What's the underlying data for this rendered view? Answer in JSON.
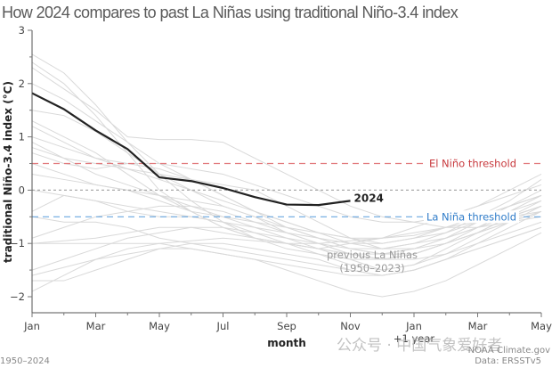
{
  "chart_data": {
    "type": "line",
    "title": "How 2024 compares to past La Niñas using traditional Niño-3.4 index",
    "xlabel": "month",
    "ylabel": "traditional Niño-3.4 index (°C)",
    "x_ticks": [
      "Jan",
      "Mar",
      "May",
      "Jul",
      "Sep",
      "Nov",
      "Jan",
      "Mar",
      "May"
    ],
    "x_tick_sublabel": "+1 year",
    "x_range_months": [
      0,
      16
    ],
    "ylim": [
      -2.3,
      3
    ],
    "y_ticks": [
      3,
      2,
      1,
      0,
      -1,
      -2
    ],
    "y_tick_labels": [
      "3",
      "2",
      "1",
      "0",
      "−1",
      "−2"
    ],
    "grid": false,
    "thresholds": [
      {
        "name": "El Niño threshold",
        "value": 0.5,
        "color": "#e27a7d"
      },
      {
        "name": "La Niña threshold",
        "value": -0.5,
        "color": "#6aa7e0"
      },
      {
        "name": "zero",
        "value": 0,
        "color": "#aaaaaa"
      }
    ],
    "highlight_series": {
      "name": "2024",
      "color": "#222222",
      "x_months": [
        0,
        1,
        2,
        3,
        4,
        5,
        6,
        7,
        8,
        9,
        10
      ],
      "values": [
        1.82,
        1.52,
        1.12,
        0.77,
        0.24,
        0.17,
        0.04,
        -0.13,
        -0.27,
        -0.28,
        -0.2
      ]
    },
    "background_series_label": "previous La Niñas (1950–2023)",
    "background_series_color": "#d9d9d9",
    "background_series": [
      [
        2.55,
        2.2,
        1.6,
        0.9,
        0.3,
        -0.2,
        -0.6,
        -0.9,
        -1.1,
        -1.2,
        -1.3,
        -1.3,
        -1.2,
        -1.0,
        -0.8,
        -0.5,
        -0.3
      ],
      [
        2.4,
        2.0,
        1.4,
        0.7,
        0.0,
        -0.4,
        -0.7,
        -0.9,
        -1.0,
        -1.1,
        -1.0,
        -0.9,
        -0.7,
        -0.5,
        -0.3,
        0.0,
        0.3
      ],
      [
        2.3,
        1.9,
        1.5,
        1.0,
        0.95,
        0.95,
        0.9,
        0.6,
        0.3,
        0.0,
        -0.3,
        -0.5,
        -0.6,
        -0.7,
        -0.7,
        -0.6,
        -0.5
      ],
      [
        2.0,
        1.7,
        1.3,
        0.9,
        0.5,
        0.2,
        -0.1,
        -0.4,
        -0.6,
        -0.8,
        -1.0,
        -1.1,
        -1.1,
        -1.0,
        -0.8,
        -0.6,
        -0.4
      ],
      [
        1.5,
        1.4,
        1.1,
        0.7,
        0.3,
        0.0,
        -0.3,
        -0.5,
        -0.8,
        -1.0,
        -1.2,
        -1.3,
        -1.2,
        -1.0,
        -0.7,
        -0.4,
        -0.1
      ],
      [
        1.2,
        0.9,
        0.6,
        0.5,
        0.4,
        0.2,
        -0.1,
        -0.4,
        -0.7,
        -0.9,
        -1.1,
        -1.2,
        -1.1,
        -0.9,
        -0.6,
        -0.3,
        0.0
      ],
      [
        1.0,
        0.8,
        0.6,
        0.4,
        0.2,
        0.0,
        -0.2,
        -0.4,
        -0.6,
        -0.8,
        -0.9,
        -1.0,
        -0.9,
        -0.7,
        -0.5,
        -0.3,
        -0.1
      ],
      [
        0.9,
        0.6,
        0.5,
        0.4,
        0.3,
        0.2,
        0.1,
        0.0,
        -0.3,
        -0.6,
        -0.9,
        -1.1,
        -1.0,
        -0.8,
        -0.5,
        -0.2,
        0.2
      ],
      [
        0.8,
        0.6,
        0.3,
        0.1,
        -0.1,
        -0.3,
        -0.5,
        -0.7,
        -0.9,
        -1.1,
        -1.3,
        -1.5,
        -1.4,
        -1.2,
        -0.9,
        -0.6,
        -0.3
      ],
      [
        0.7,
        0.5,
        0.4,
        0.5,
        0.5,
        0.4,
        0.3,
        0.1,
        -0.1,
        -0.3,
        -0.5,
        -0.6,
        -0.6,
        -0.5,
        -0.3,
        -0.1,
        0.1
      ],
      [
        0.5,
        0.3,
        0.1,
        0.0,
        -0.1,
        -0.2,
        -0.3,
        -0.5,
        -0.7,
        -0.9,
        -1.1,
        -1.2,
        -1.2,
        -1.0,
        -0.8,
        -0.6,
        -0.4
      ],
      [
        0.0,
        -0.1,
        -0.2,
        -0.3,
        -0.4,
        -0.5,
        -0.6,
        -0.7,
        -0.8,
        -0.9,
        -1.0,
        -1.0,
        -0.9,
        -0.8,
        -0.6,
        -0.4,
        -0.2
      ],
      [
        -0.4,
        -0.1,
        -0.2,
        -0.4,
        -0.5,
        -0.5,
        -0.6,
        -0.8,
        -1.0,
        -1.2,
        -1.4,
        -1.5,
        -1.4,
        -1.1,
        -0.8,
        -0.5,
        -0.2
      ],
      [
        -0.5,
        -0.6,
        -0.6,
        -0.7,
        -0.9,
        -1.0,
        -1.1,
        -1.2,
        -1.3,
        -1.4,
        -1.5,
        -1.6,
        -1.5,
        -1.3,
        -1.0,
        -0.7,
        -0.4
      ],
      [
        -0.9,
        -0.7,
        -0.5,
        -0.4,
        -0.3,
        -0.3,
        -0.4,
        -0.6,
        -0.8,
        -1.0,
        -1.2,
        -1.3,
        -1.2,
        -1.0,
        -0.8,
        -0.5,
        -0.3
      ],
      [
        -1.0,
        -0.95,
        -0.9,
        -0.8,
        -0.7,
        -0.7,
        -0.8,
        -0.9,
        -1.0,
        -1.0,
        -0.95,
        -0.9,
        -0.8,
        -0.7,
        -0.6,
        -0.5,
        -0.4
      ],
      [
        -1.0,
        -1.0,
        -1.0,
        -1.0,
        -1.0,
        -1.1,
        -1.2,
        -1.3,
        -1.4,
        -1.5,
        -1.6,
        -1.6,
        -1.5,
        -1.3,
        -1.1,
        -0.9,
        -0.7
      ],
      [
        -1.5,
        -1.3,
        -1.1,
        -0.9,
        -0.8,
        -0.7,
        -0.7,
        -0.8,
        -0.9,
        -1.0,
        -1.1,
        -1.1,
        -1.0,
        -0.9,
        -0.7,
        -0.5,
        -0.3
      ],
      [
        -1.6,
        -1.45,
        -1.3,
        -1.1,
        -1.0,
        -0.95,
        -0.9,
        -0.95,
        -1.0,
        -1.1,
        -1.2,
        -1.3,
        -1.3,
        -1.2,
        -1.0,
        -0.8,
        -0.6
      ],
      [
        -1.7,
        -1.7,
        -1.5,
        -1.3,
        -1.1,
        -1.0,
        -1.0,
        -1.1,
        -1.2,
        -1.3,
        -1.5,
        -1.6,
        -1.5,
        -1.3,
        -1.1,
        -0.9,
        -0.7
      ],
      [
        -1.9,
        -1.6,
        -1.3,
        -1.2,
        -1.1,
        -1.1,
        -1.2,
        -1.3,
        -1.5,
        -1.7,
        -1.9,
        -2.0,
        -1.9,
        -1.7,
        -1.4,
        -1.1,
        -0.8
      ],
      [
        1.3,
        1.0,
        0.7,
        0.3,
        -0.1,
        -0.4,
        -0.7,
        -0.9,
        -1.0,
        -1.1,
        -1.2,
        -1.2,
        -1.1,
        -0.9,
        -0.7,
        -0.5,
        -0.3
      ],
      [
        0.3,
        0.2,
        0.1,
        0.0,
        -0.2,
        -0.4,
        -0.5,
        -0.6,
        -0.7,
        -0.8,
        -0.9,
        -0.9,
        -0.85,
        -0.7,
        -0.5,
        -0.3,
        -0.1
      ]
    ],
    "legend": "inline-labels"
  },
  "footer": {
    "years": "1950–2024",
    "credit": "NOAA Climate.gov",
    "source": "Data: ERSSTv5"
  },
  "watermark": "公众号 · 中国气象爱好者"
}
